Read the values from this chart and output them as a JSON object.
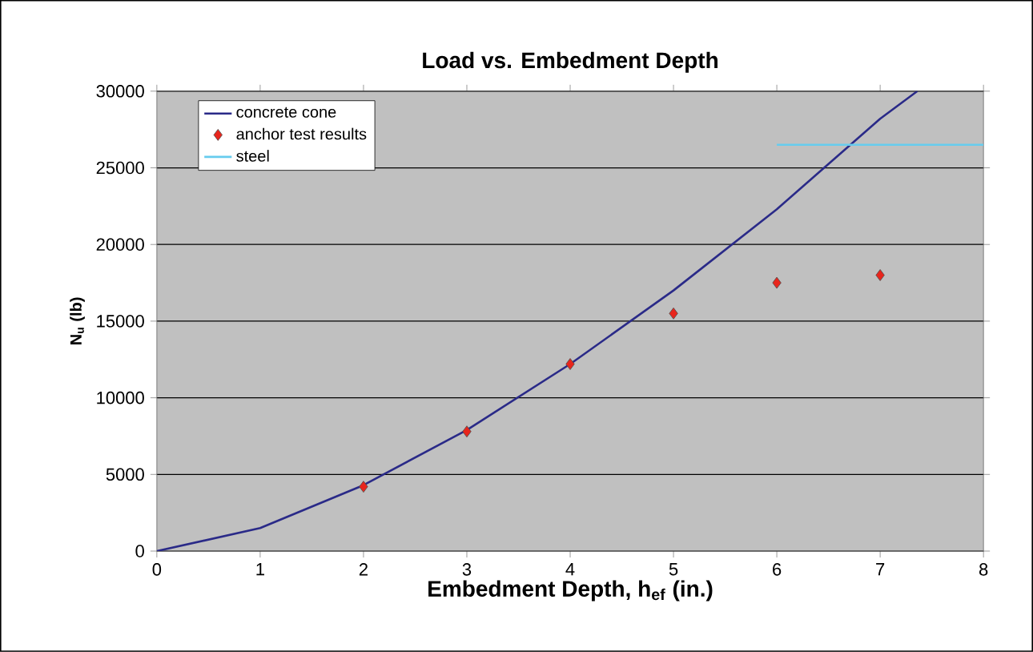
{
  "chart_data": {
    "type": "line",
    "title": "Load vs. Embedment Depth",
    "xlabel": "Embedment Depth, h$_{ef}$ (in.)",
    "ylabel": "N$_{u}$ (lb)",
    "series": [
      {
        "name": "concrete cone",
        "color": "#2a2a88",
        "marker": "none",
        "x": [
          0,
          1,
          2,
          3,
          4,
          5,
          6,
          7,
          7.36
        ],
        "values": [
          0,
          1500,
          4300,
          7900,
          12200,
          17000,
          22300,
          28200,
          30000
        ]
      },
      {
        "name": "anchor test results",
        "type": "scatter",
        "color": "#e8251c",
        "marker": "diamond",
        "x": [
          2,
          3,
          4,
          5,
          6,
          7
        ],
        "values": [
          4200,
          7800,
          12200,
          15500,
          17500,
          18000
        ]
      },
      {
        "name": "steel",
        "color": "#66ccee",
        "marker": "none",
        "x": [
          6,
          8
        ],
        "values": [
          26500,
          26500
        ]
      }
    ],
    "xlim": [
      0,
      8
    ],
    "xticks": [
      0,
      1,
      2,
      3,
      4,
      5,
      6,
      7,
      8
    ],
    "ylim": [
      0,
      30000
    ],
    "yticks": [
      0,
      5000,
      10000,
      15000,
      20000,
      25000,
      30000
    ],
    "grid": "y",
    "legend": "top left"
  }
}
